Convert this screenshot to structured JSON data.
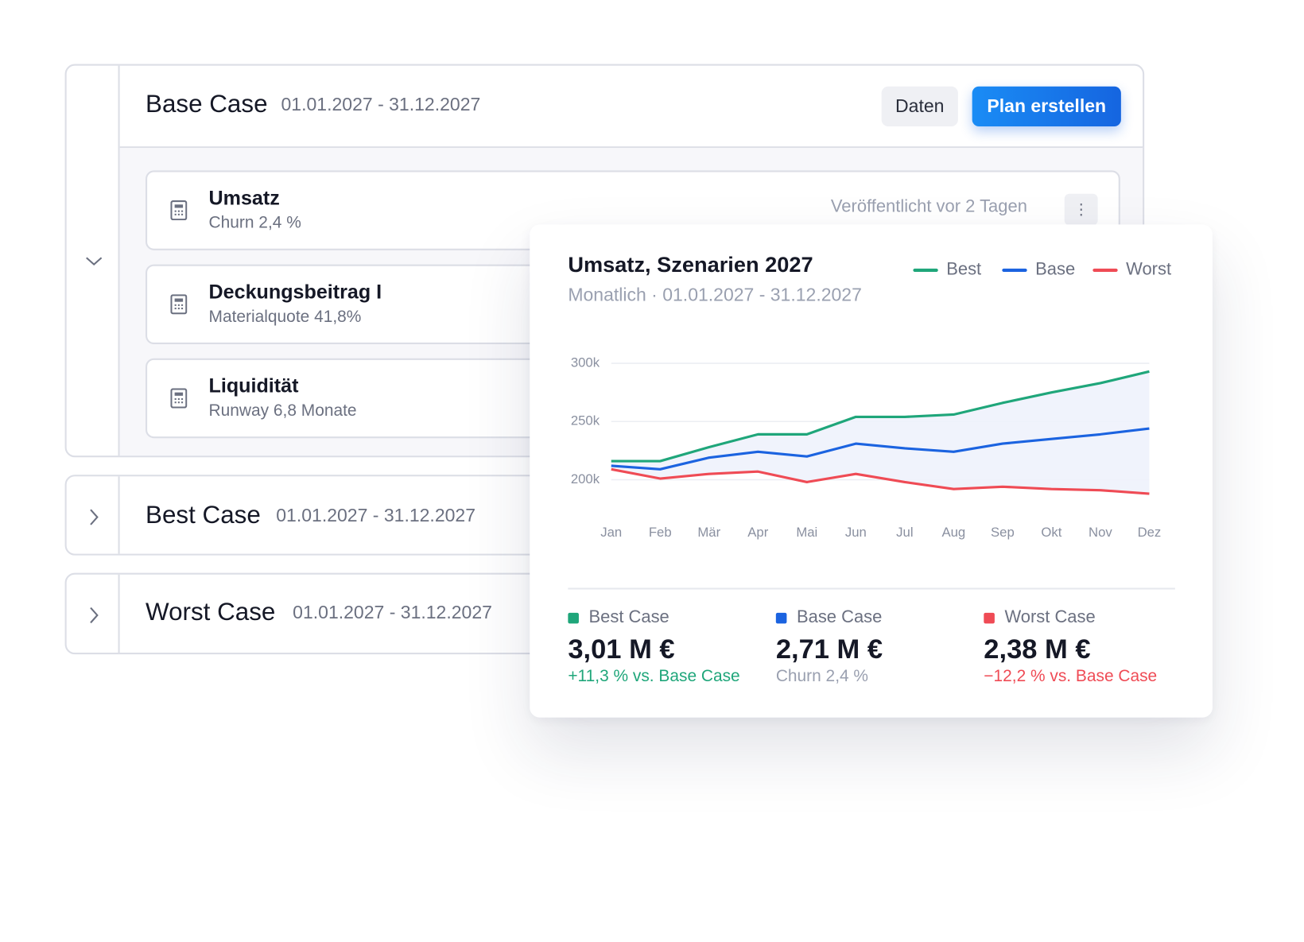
{
  "panel": {
    "scenarios": [
      {
        "name": "Base Case",
        "period": "01.01.2027 - 31.12.2027"
      },
      {
        "name": "Best Case",
        "period": "01.01.2027 - 31.12.2027"
      },
      {
        "name": "Worst Case",
        "period": "01.01.2027 - 31.12.2027"
      }
    ],
    "buttons": [
      "Daten",
      "Plan erstellen"
    ],
    "items": [
      {
        "title": "Umsatz",
        "subtitle": "Churn 2,4 %"
      },
      {
        "title": "Deckungsbeitrag I",
        "subtitle": "Materialquote 41,8%"
      },
      {
        "title": "Liquidität",
        "subtitle": "Runway 6,8 Monate"
      }
    ],
    "status": "Veröffentlicht vor 2 Tagen"
  },
  "chart_data": {
    "type": "line",
    "title": "Umsatz, Szenarien 2027",
    "subtitle": "Monatlich · 01.01.2027 - 31.12.2027",
    "categories": [
      "Jan",
      "Feb",
      "Mär",
      "Apr",
      "Mai",
      "Jun",
      "Jul",
      "Aug",
      "Sep",
      "Okt",
      "Nov",
      "Dez"
    ],
    "series": [
      {
        "name": "Best",
        "color": "#1fa67a",
        "values": [
          216000,
          216000,
          228000,
          239000,
          239000,
          254000,
          254000,
          256000,
          266000,
          275000,
          283000,
          293000
        ]
      },
      {
        "name": "Base",
        "color": "#1b63e0",
        "values": [
          212000,
          209000,
          219000,
          224000,
          220000,
          231000,
          227000,
          224000,
          231000,
          235000,
          239000,
          244000
        ]
      },
      {
        "name": "Worst",
        "color": "#ef4b55",
        "values": [
          209000,
          201000,
          205000,
          207000,
          198000,
          205000,
          198000,
          192000,
          194000,
          192000,
          191000,
          188000
        ]
      }
    ],
    "ylim": [
      180000,
      310000
    ],
    "yticks": [
      {
        "value": 200000,
        "label": "200k"
      },
      {
        "value": 250000,
        "label": "250k"
      },
      {
        "value": 300000,
        "label": "300k"
      }
    ],
    "grid": true,
    "summary": [
      {
        "label": "Best Case",
        "value": "3,01 M €",
        "note": "+11,3 % vs. Base Case",
        "color": "#1fa67a",
        "note_color": "#1fa67a"
      },
      {
        "label": "Base Case",
        "value": "2,71 M €",
        "note": "Churn 2,4 %",
        "color": "#1b63e0",
        "note_color": "#9aa0b0"
      },
      {
        "label": "Worst Case",
        "value": "2,38 M €",
        "note": "−12,2 % vs. Base Case",
        "color": "#ef4b55",
        "note_color": "#ef4b55"
      }
    ]
  }
}
